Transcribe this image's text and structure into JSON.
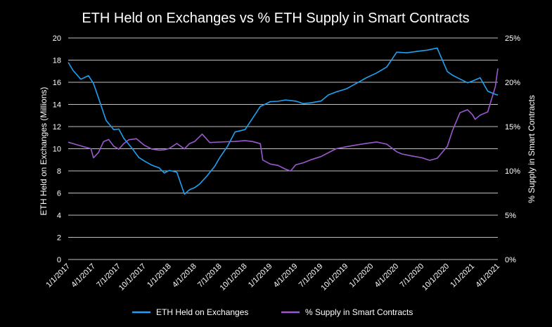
{
  "chart_data": {
    "type": "line",
    "title": "ETH Held on Exchanges vs % ETH Supply in Smart Contracts",
    "ylabel_left": "ETH Held on Exchanges (Millions)",
    "ylabel_right": "% Supply in Smart Contracts",
    "ylim_left": [
      0,
      20
    ],
    "ylim_right": [
      0,
      25
    ],
    "yticks_left": [
      "0",
      "2",
      "4",
      "6",
      "8",
      "10",
      "12",
      "14",
      "16",
      "18",
      "20"
    ],
    "yticks_right": [
      "0%",
      "5%",
      "10%",
      "15%",
      "20%",
      "25%"
    ],
    "xticks": [
      "1/1/2017",
      "4/1/2017",
      "7/1/2017",
      "10/1/2017",
      "1/1/2018",
      "4/1/2018",
      "7/1/2018",
      "10/1/2018",
      "1/1/2019",
      "4/1/2019",
      "7/1/2019",
      "10/1/2019",
      "1/1/2020",
      "4/1/2020",
      "7/1/2020",
      "10/1/2020",
      "1/1/2021",
      "4/1/2021"
    ],
    "grid": "horizontal",
    "legend_position": "bottom",
    "series": [
      {
        "name": "ETH Held on Exchanges",
        "axis": "left",
        "color": "#1da1f2",
        "x": [
          0,
          0.2,
          0.5,
          0.8,
          1.0,
          1.2,
          1.5,
          1.8,
          2.0,
          2.2,
          2.5,
          2.8,
          3.0,
          3.3,
          3.6,
          3.8,
          4.0,
          4.3,
          4.6,
          4.8,
          5.0,
          5.1,
          5.2,
          5.5,
          5.8,
          6.0,
          6.3,
          6.6,
          7.0,
          7.3,
          7.6,
          8.0,
          8.3,
          8.6,
          9.0,
          9.3,
          9.6,
          10.0,
          10.3,
          10.6,
          11.0,
          11.4,
          11.8,
          12.2,
          12.6,
          13.0,
          13.4,
          13.8,
          14.2,
          14.6,
          15.0,
          15.2,
          15.5,
          15.8,
          16.0,
          16.3,
          16.6,
          16.9,
          17.0
        ],
        "values": [
          17.8,
          17.0,
          16.2,
          16.5,
          15.8,
          14.5,
          12.5,
          11.7,
          11.8,
          11.0,
          10.2,
          9.3,
          9.0,
          8.6,
          8.3,
          7.8,
          8.0,
          7.8,
          5.8,
          6.2,
          6.4,
          6.6,
          6.8,
          7.6,
          8.5,
          9.3,
          10.3,
          11.6,
          11.8,
          12.8,
          13.8,
          14.2,
          14.2,
          14.3,
          14.2,
          14.0,
          14.1,
          14.3,
          14.9,
          15.2,
          15.5,
          16.0,
          16.5,
          16.9,
          17.4,
          18.7,
          18.6,
          18.7,
          18.8,
          19.0,
          16.9,
          16.6,
          16.3,
          16.0,
          16.2,
          16.5,
          15.3,
          15.0,
          14.9
        ]
      },
      {
        "name": "% Supply in Smart Contracts",
        "axis": "right",
        "color": "#9b59d0",
        "x": [
          0,
          0.3,
          0.6,
          0.9,
          1.0,
          1.2,
          1.4,
          1.6,
          1.8,
          2.0,
          2.2,
          2.4,
          2.7,
          3.0,
          3.3,
          3.6,
          3.8,
          4.0,
          4.3,
          4.6,
          4.8,
          5.0,
          5.3,
          5.6,
          6.0,
          6.3,
          6.6,
          7.0,
          7.3,
          7.6,
          7.7,
          8.0,
          8.3,
          8.6,
          8.8,
          9.0,
          9.3,
          9.6,
          10.0,
          10.3,
          10.6,
          11.0,
          11.4,
          11.8,
          12.2,
          12.6,
          13.0,
          13.2,
          13.6,
          14.0,
          14.3,
          14.6,
          15.0,
          15.2,
          15.5,
          15.8,
          16.0,
          16.1,
          16.3,
          16.6,
          16.9,
          17.0
        ],
        "values": [
          13.2,
          13.0,
          12.8,
          12.6,
          11.6,
          12.2,
          13.4,
          13.6,
          12.8,
          12.4,
          13.0,
          13.4,
          13.5,
          12.8,
          12.4,
          12.3,
          12.4,
          12.6,
          13.2,
          12.6,
          13.2,
          13.4,
          14.2,
          13.2,
          13.2,
          13.2,
          13.2,
          13.3,
          13.2,
          13.0,
          11.2,
          10.8,
          10.7,
          10.3,
          10.1,
          10.8,
          11.0,
          11.3,
          11.6,
          12.0,
          12.4,
          12.6,
          12.8,
          13.0,
          13.2,
          13.0,
          12.2,
          12.0,
          11.8,
          11.6,
          11.3,
          11.5,
          12.8,
          14.5,
          16.5,
          16.8,
          16.2,
          15.7,
          16.2,
          16.6,
          19.5,
          21.6
        ]
      }
    ]
  }
}
